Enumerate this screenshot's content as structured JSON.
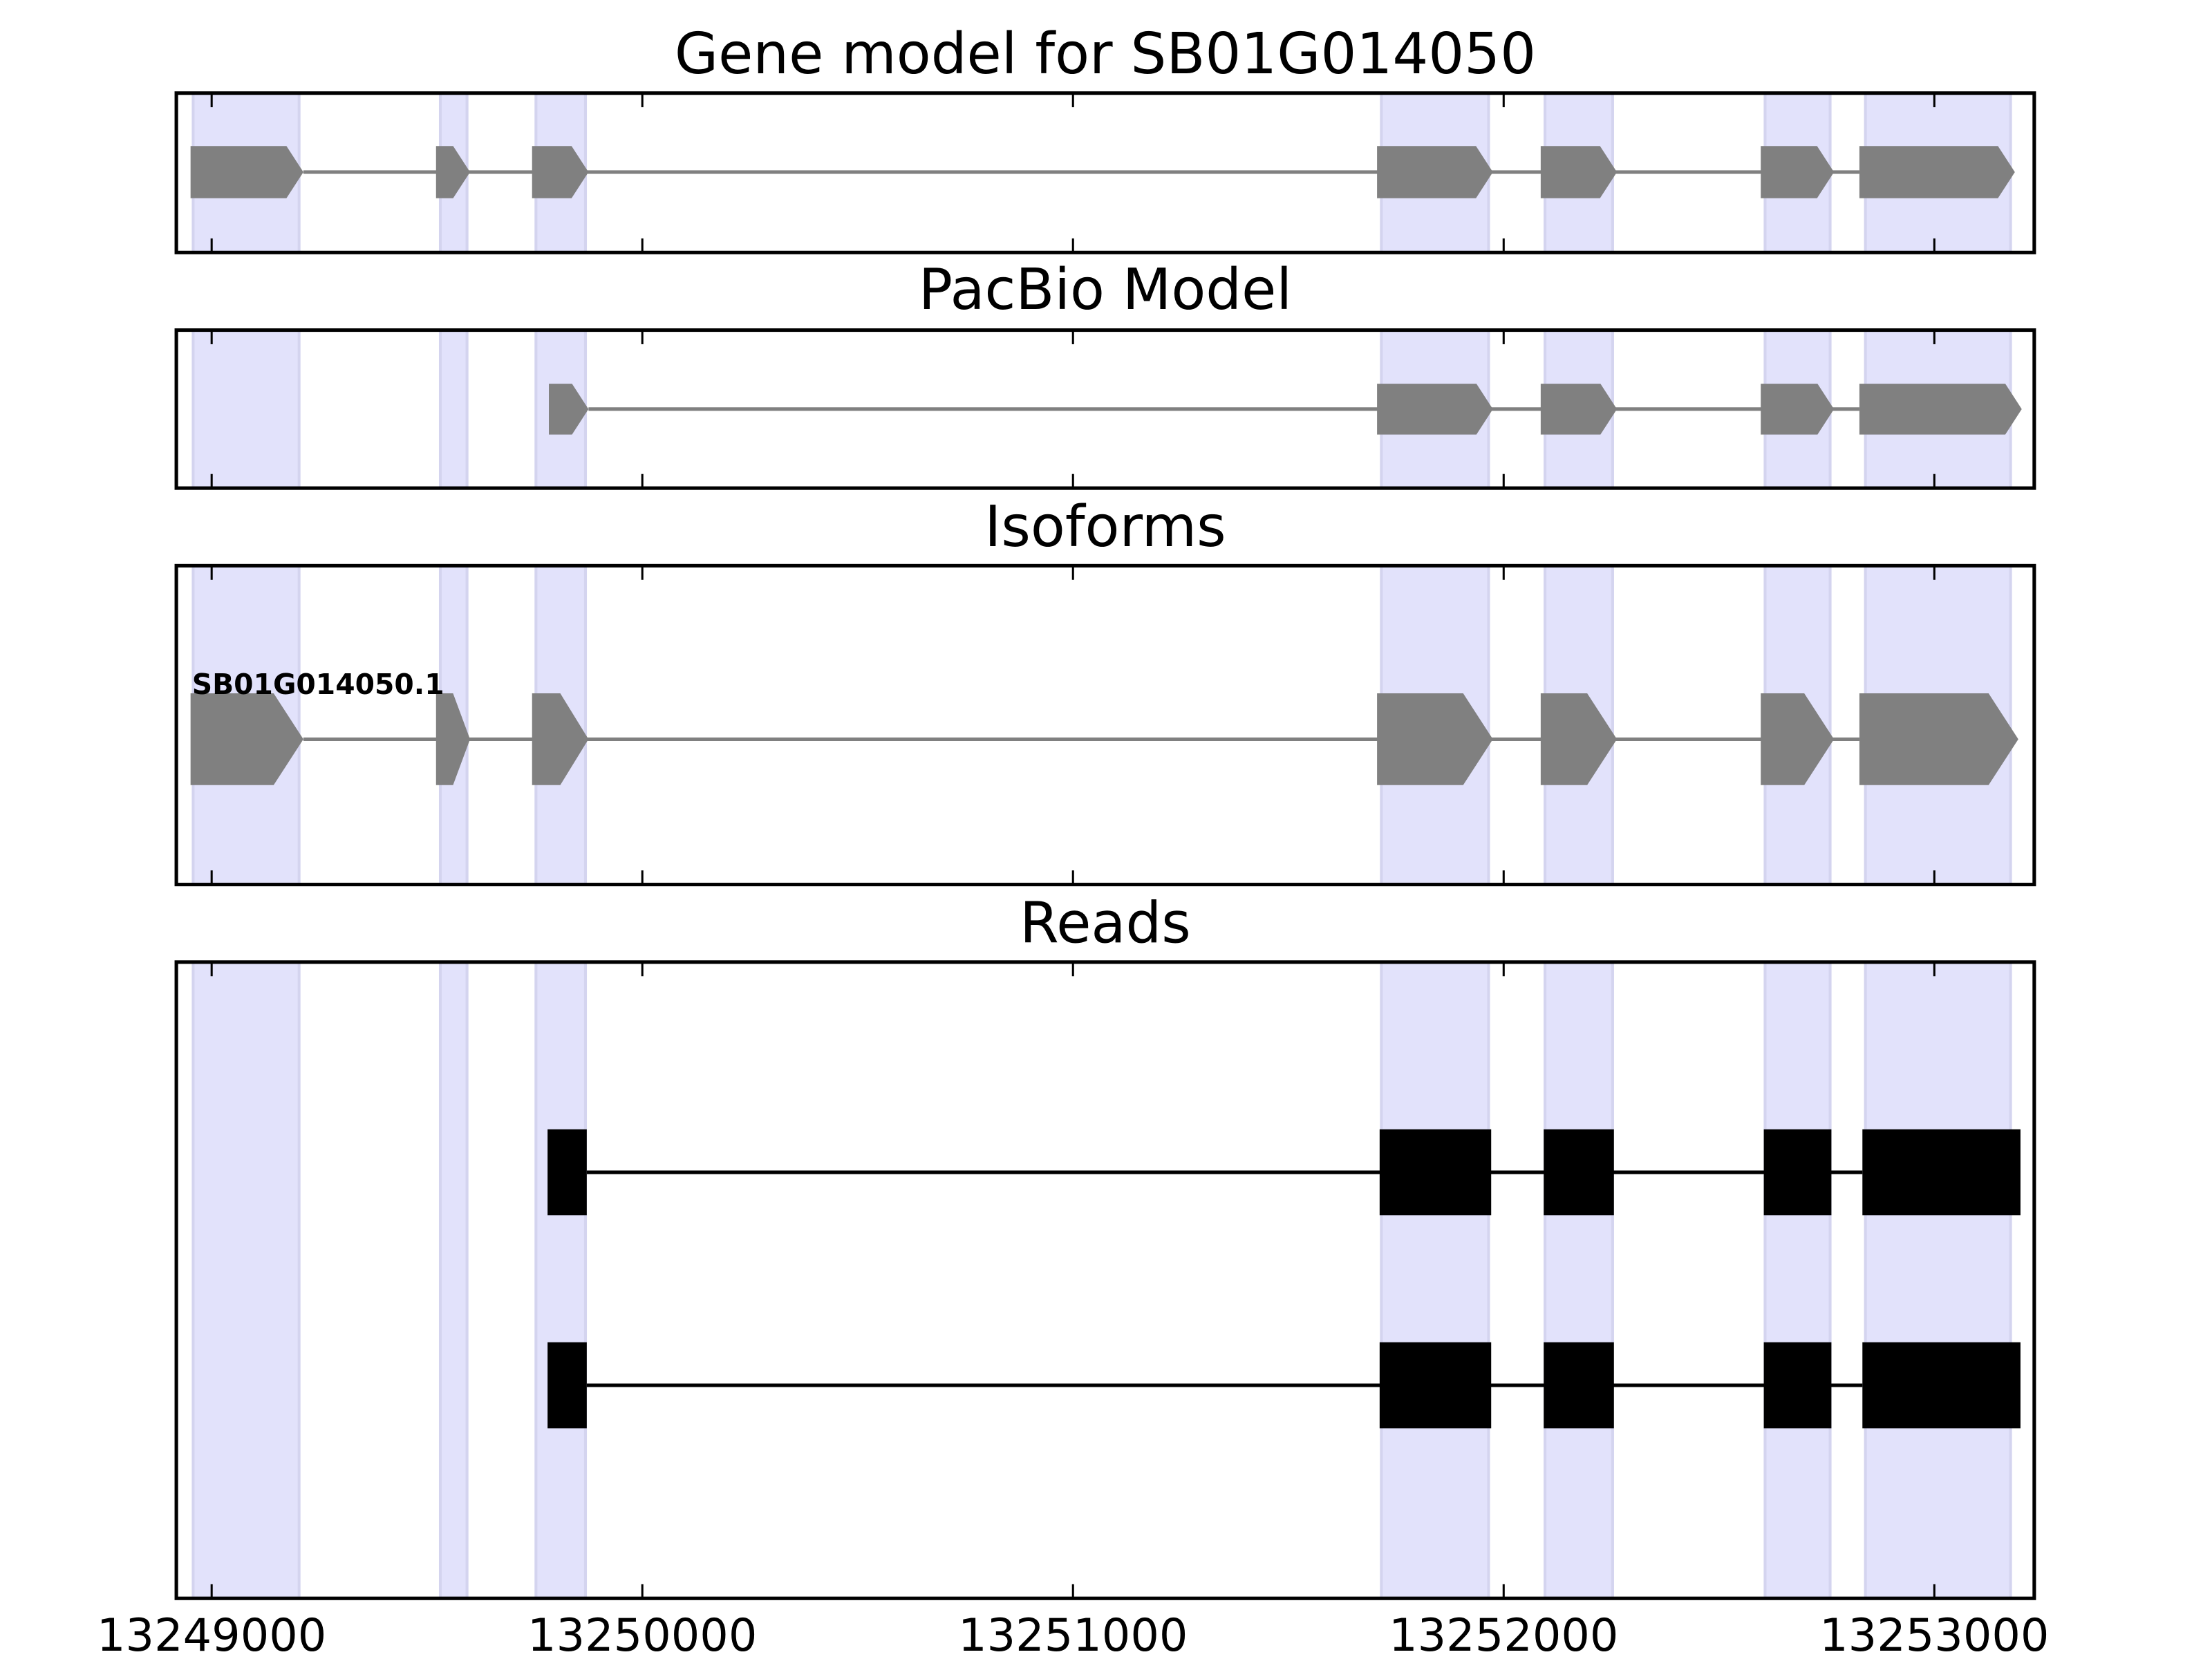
{
  "chart_data": {
    "type": "gene-track",
    "xlim": [
      13248918,
      13253232
    ],
    "xticks": [
      13249000,
      13250000,
      13251000,
      13252000,
      13253000
    ],
    "xtick_labels": [
      "13249000",
      "13250000",
      "13251000",
      "13252000",
      "13253000"
    ],
    "highlight_color": "#e2e2fb",
    "shaded_regions": [
      [
        13248957,
        13249203
      ],
      [
        13249531,
        13249593
      ],
      [
        13249753,
        13249868
      ],
      [
        13251716,
        13251965
      ],
      [
        13252096,
        13252253
      ],
      [
        13252607,
        13252758
      ],
      [
        13252840,
        13253177
      ]
    ],
    "panels": [
      {
        "title": "Gene model for SB01G014050",
        "style": "arrow",
        "color": "#808080",
        "features": [
          {
            "label": "",
            "exons": [
              [
                13248951,
                13249213
              ],
              [
                13249521,
                13249600
              ],
              [
                13249744,
                13249875
              ],
              [
                13251706,
                13251975
              ],
              [
                13252086,
                13252263
              ],
              [
                13252597,
                13252767
              ],
              [
                13252826,
                13253187
              ]
            ]
          }
        ]
      },
      {
        "title": "PacBio Model",
        "style": "arrow",
        "color": "#808080",
        "features": [
          {
            "label": "",
            "exons": [
              [
                13249783,
                13249875
              ],
              [
                13251706,
                13251975
              ],
              [
                13252086,
                13252263
              ],
              [
                13252597,
                13252767
              ],
              [
                13252826,
                13253203
              ]
            ]
          }
        ]
      },
      {
        "title": "Isoforms",
        "style": "arrow",
        "color": "#808080",
        "features": [
          {
            "label": "SB01G014050.1",
            "exons": [
              [
                13248951,
                13249213
              ],
              [
                13249521,
                13249600
              ],
              [
                13249744,
                13249875
              ],
              [
                13251706,
                13251975
              ],
              [
                13252086,
                13252263
              ],
              [
                13252597,
                13252767
              ],
              [
                13252826,
                13253195
              ]
            ]
          }
        ]
      },
      {
        "title": "Reads",
        "style": "box",
        "color": "#000000",
        "features": [
          {
            "label": "",
            "exons": [
              [
                13249780,
                13249871
              ],
              [
                13251712,
                13251971
              ],
              [
                13252093,
                13252256
              ],
              [
                13252604,
                13252761
              ],
              [
                13252833,
                13253200
              ]
            ]
          },
          {
            "label": "",
            "exons": [
              [
                13249780,
                13249871
              ],
              [
                13251712,
                13251971
              ],
              [
                13252093,
                13252256
              ],
              [
                13252604,
                13252761
              ],
              [
                13252833,
                13253200
              ]
            ]
          }
        ]
      }
    ]
  }
}
